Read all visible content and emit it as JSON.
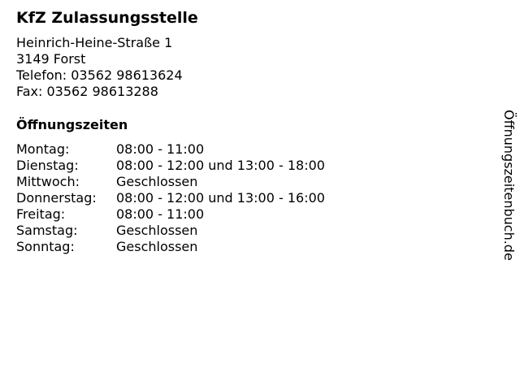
{
  "business": {
    "name": "KfZ Zulassungsstelle",
    "street": "Heinrich-Heine-Straße 1",
    "city": "3149 Forst",
    "phone": "Telefon: 03562 98613624",
    "fax": "Fax: 03562 98613288"
  },
  "hours": {
    "title": "Öffnungszeiten",
    "rows": [
      {
        "day": "Montag:",
        "time": "08:00 - 11:00"
      },
      {
        "day": "Dienstag:",
        "time": "08:00 - 12:00 und 13:00 - 18:00"
      },
      {
        "day": "Mittwoch:",
        "time": "Geschlossen"
      },
      {
        "day": "Donnerstag:",
        "time": "08:00 - 12:00 und 13:00 - 16:00"
      },
      {
        "day": "Freitag:",
        "time": "08:00 - 11:00"
      },
      {
        "day": "Samstag:",
        "time": "Geschlossen"
      },
      {
        "day": "Sonntag:",
        "time": "Geschlossen"
      }
    ]
  },
  "watermark": "Öffnungszeitenbuch.de"
}
